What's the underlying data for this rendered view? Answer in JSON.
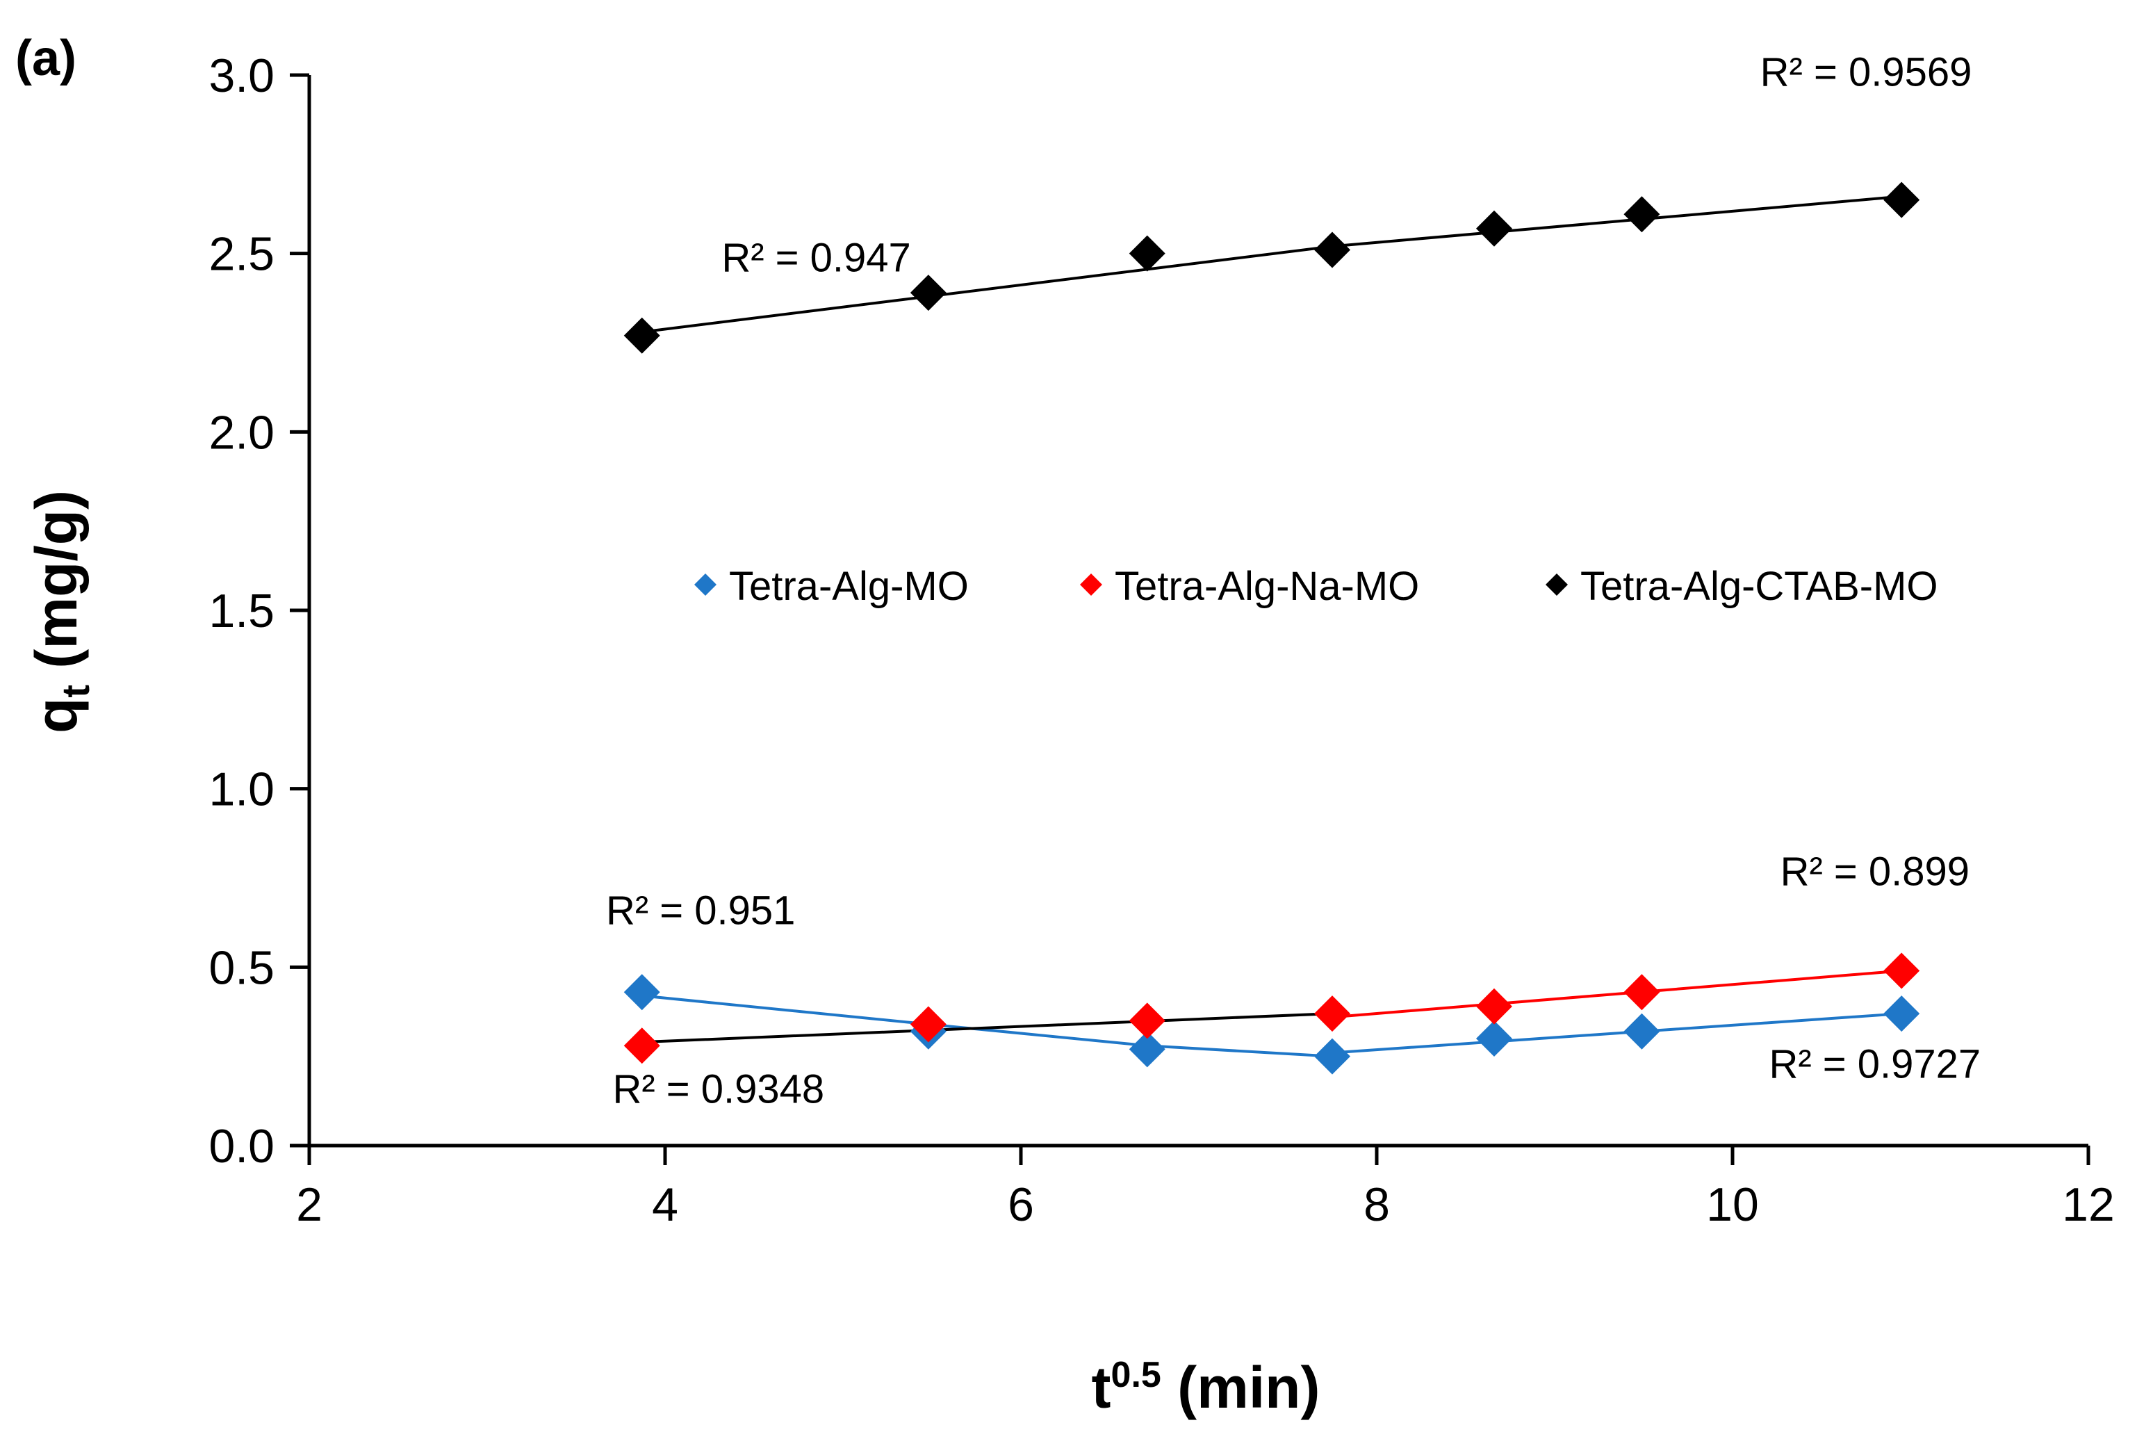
{
  "chart_data": {
    "type": "scatter",
    "panel_label": "(a)",
    "xlabel_base": "t",
    "xlabel_sup": "0.5",
    "xlabel_rest": " (min)",
    "ylabel_base": "q",
    "ylabel_sub": "t",
    "ylabel_rest": " (mg/g)",
    "xlim": [
      2,
      12
    ],
    "ylim": [
      0.0,
      3.0
    ],
    "x_ticks": [
      2,
      4,
      6,
      8,
      10,
      12
    ],
    "x_tick_labels": [
      "2",
      "4",
      "6",
      "8",
      "10",
      "12"
    ],
    "y_ticks": [
      0.0,
      0.5,
      1.0,
      1.5,
      2.0,
      2.5,
      3.0
    ],
    "y_tick_labels": [
      "0.0",
      "0.5",
      "1.0",
      "1.5",
      "2.0",
      "2.5",
      "3.0"
    ],
    "grid": false,
    "legend_position": "center",
    "series": [
      {
        "name": "Tetra-Alg-MO",
        "color": "#1f77c8",
        "marker": "diamond",
        "x": [
          3.87,
          5.48,
          6.71,
          7.75,
          8.66,
          9.49,
          10.95
        ],
        "y": [
          0.43,
          0.32,
          0.27,
          0.25,
          0.3,
          0.32,
          0.37
        ]
      },
      {
        "name": "Tetra-Alg-Na-MO",
        "color": "#ff0000",
        "marker": "diamond",
        "x": [
          3.87,
          5.48,
          6.71,
          7.75,
          8.66,
          9.49,
          10.95
        ],
        "y": [
          0.28,
          0.34,
          0.35,
          0.37,
          0.39,
          0.43,
          0.49
        ]
      },
      {
        "name": "Tetra-Alg-CTAB-MO",
        "color": "#000000",
        "marker": "diamond",
        "x": [
          3.87,
          5.48,
          6.71,
          7.75,
          8.66,
          9.49,
          10.95
        ],
        "y": [
          2.27,
          2.39,
          2.5,
          2.51,
          2.57,
          2.61,
          2.65
        ]
      }
    ],
    "fit_lines": [
      {
        "color": "#000000",
        "x": [
          3.87,
          7.75
        ],
        "y": [
          2.28,
          2.52
        ]
      },
      {
        "color": "#000000",
        "x": [
          7.75,
          10.95
        ],
        "y": [
          2.52,
          2.66
        ]
      },
      {
        "color": "#1f77c8",
        "x": [
          3.87,
          5.48,
          6.71,
          7.75
        ],
        "y": [
          0.42,
          0.34,
          0.28,
          0.25
        ]
      },
      {
        "color": "#1f77c8",
        "x": [
          7.75,
          10.95
        ],
        "y": [
          0.26,
          0.37
        ]
      },
      {
        "color": "#000000",
        "x": [
          3.87,
          7.75
        ],
        "y": [
          0.29,
          0.37
        ]
      },
      {
        "color": "#ff0000",
        "x": [
          7.75,
          10.95
        ],
        "y": [
          0.36,
          0.49
        ]
      }
    ],
    "annotations": [
      {
        "text": "R² = 0.947",
        "x": 4.85,
        "y": 2.45
      },
      {
        "text": "R² = 0.9569",
        "x": 10.75,
        "y": 2.97
      },
      {
        "text": "R² = 0.951",
        "x": 4.2,
        "y": 0.62
      },
      {
        "text": "R² = 0.9348",
        "x": 4.3,
        "y": 0.12
      },
      {
        "text": "R² = 0.899",
        "x": 10.8,
        "y": 0.73
      },
      {
        "text": "R² = 0.9727",
        "x": 10.8,
        "y": 0.19
      }
    ]
  }
}
